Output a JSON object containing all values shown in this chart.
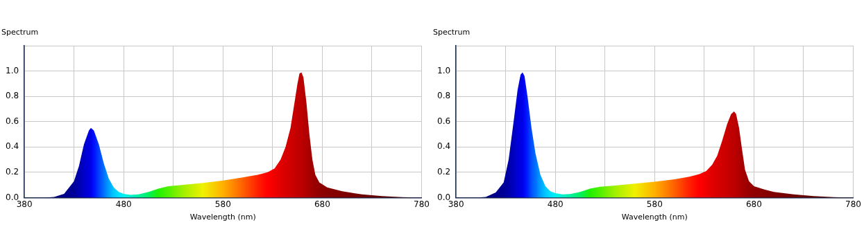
{
  "chart_data": [
    {
      "type": "area",
      "xlabel": "Wavelength (nm)",
      "ylabel": "Spectrum",
      "xlim": [
        380,
        780
      ],
      "ylim": [
        0,
        1.2
      ],
      "xticks": [
        380,
        {
          "value": 430,
          "label": null
        },
        480,
        {
          "value": 530,
          "label": null
        },
        580,
        {
          "value": 630,
          "label": null
        },
        680,
        {
          "value": 730,
          "label": null
        },
        780
      ],
      "yticks": [
        {
          "value": 0,
          "label": "0.0"
        },
        0.2,
        0.4,
        0.6,
        0.8,
        {
          "value": 1,
          "label": "1.0"
        },
        {
          "value": 1.2,
          "label": null
        }
      ],
      "grid": true,
      "legend": false,
      "x": [
        380,
        400,
        410,
        420,
        430,
        435,
        440,
        445,
        447,
        450,
        455,
        460,
        465,
        470,
        475,
        480,
        487,
        495,
        505,
        515,
        525,
        540,
        560,
        580,
        600,
        615,
        625,
        632,
        638,
        643,
        648,
        652,
        655,
        657,
        659,
        661,
        664,
        667,
        670,
        673,
        677,
        685,
        700,
        720,
        740,
        760,
        780
      ],
      "series": [
        {
          "values": [
            0,
            0,
            0.005,
            0.03,
            0.13,
            0.25,
            0.42,
            0.53,
            0.55,
            0.53,
            0.42,
            0.27,
            0.15,
            0.08,
            0.045,
            0.03,
            0.022,
            0.025,
            0.045,
            0.07,
            0.09,
            0.1,
            0.115,
            0.135,
            0.16,
            0.18,
            0.2,
            0.23,
            0.3,
            0.4,
            0.55,
            0.75,
            0.9,
            0.98,
            0.99,
            0.95,
            0.75,
            0.5,
            0.3,
            0.18,
            0.12,
            0.08,
            0.05,
            0.025,
            0.012,
            0.004,
            0
          ],
          "colors": [
            "#000060",
            "#000070",
            "#000080",
            "#00008c",
            "#000098",
            "#0000b0",
            "#0000c8",
            "#0000e0",
            "#0000ea",
            "#0010ff",
            "#0040ff",
            "#0070ff",
            "#00a0ff",
            "#00c8ff",
            "#00e0ff",
            "#00f0f0",
            "#00f0d0",
            "#00f0a0",
            "#00f060",
            "#20f000",
            "#50f000",
            "#a0f000",
            "#f0f000",
            "#ffb000",
            "#ff6000",
            "#ff2000",
            "#ff0000",
            "#f00000",
            "#e00000",
            "#d80000",
            "#d00000",
            "#c80000",
            "#c00000",
            "#c00000",
            "#bc0000",
            "#b80000",
            "#b00000",
            "#a80000",
            "#a00000",
            "#980000",
            "#900000",
            "#880000",
            "#800000",
            "#700000",
            "#600000",
            "#500000",
            "#400000"
          ]
        }
      ]
    },
    {
      "type": "area",
      "xlabel": "Wavelength (nm)",
      "ylabel": "Spectrum",
      "xlim": [
        380,
        780
      ],
      "ylim": [
        0,
        1.2
      ],
      "xticks": [
        380,
        {
          "value": 430,
          "label": null
        },
        480,
        {
          "value": 530,
          "label": null
        },
        580,
        {
          "value": 630,
          "label": null
        },
        680,
        {
          "value": 730,
          "label": null
        },
        780
      ],
      "yticks": [
        {
          "value": 0,
          "label": "0.0"
        },
        0.2,
        0.4,
        0.6,
        0.8,
        {
          "value": 1,
          "label": "1.0"
        },
        {
          "value": 1.2,
          "label": null
        }
      ],
      "grid": true,
      "legend": false,
      "x": [
        380,
        400,
        410,
        420,
        428,
        433,
        438,
        442,
        445,
        447,
        449,
        452,
        456,
        460,
        465,
        470,
        475,
        480,
        487,
        495,
        505,
        515,
        525,
        540,
        560,
        580,
        600,
        615,
        625,
        632,
        638,
        643,
        648,
        653,
        657,
        660,
        662,
        665,
        668,
        671,
        675,
        680,
        690,
        700,
        720,
        740,
        760,
        780
      ],
      "series": [
        {
          "values": [
            0,
            0,
            0.005,
            0.04,
            0.12,
            0.3,
            0.6,
            0.85,
            0.97,
            0.99,
            0.96,
            0.8,
            0.55,
            0.35,
            0.18,
            0.09,
            0.05,
            0.035,
            0.025,
            0.028,
            0.045,
            0.07,
            0.085,
            0.095,
            0.11,
            0.125,
            0.145,
            0.165,
            0.185,
            0.21,
            0.26,
            0.33,
            0.45,
            0.58,
            0.66,
            0.68,
            0.66,
            0.55,
            0.38,
            0.22,
            0.13,
            0.09,
            0.065,
            0.045,
            0.025,
            0.012,
            0.004,
            0
          ],
          "colors": [
            "#000060",
            "#000070",
            "#000080",
            "#00008c",
            "#000096",
            "#0000a8",
            "#0000c0",
            "#0000d8",
            "#0000e4",
            "#0000ea",
            "#0008f8",
            "#0020ff",
            "#0050ff",
            "#0070ff",
            "#00a0ff",
            "#00c8ff",
            "#00e0ff",
            "#00f0f0",
            "#00f0d0",
            "#00f0a0",
            "#00f060",
            "#20f000",
            "#50f000",
            "#a0f000",
            "#f0f000",
            "#ffb000",
            "#ff6000",
            "#ff2000",
            "#ff0000",
            "#f00000",
            "#e00000",
            "#d80000",
            "#d00000",
            "#c80000",
            "#c00000",
            "#bc0000",
            "#b80000",
            "#b00000",
            "#a80000",
            "#a00000",
            "#980000",
            "#900000",
            "#880000",
            "#800000",
            "#700000",
            "#600000",
            "#500000",
            "#400000"
          ]
        }
      ]
    }
  ]
}
